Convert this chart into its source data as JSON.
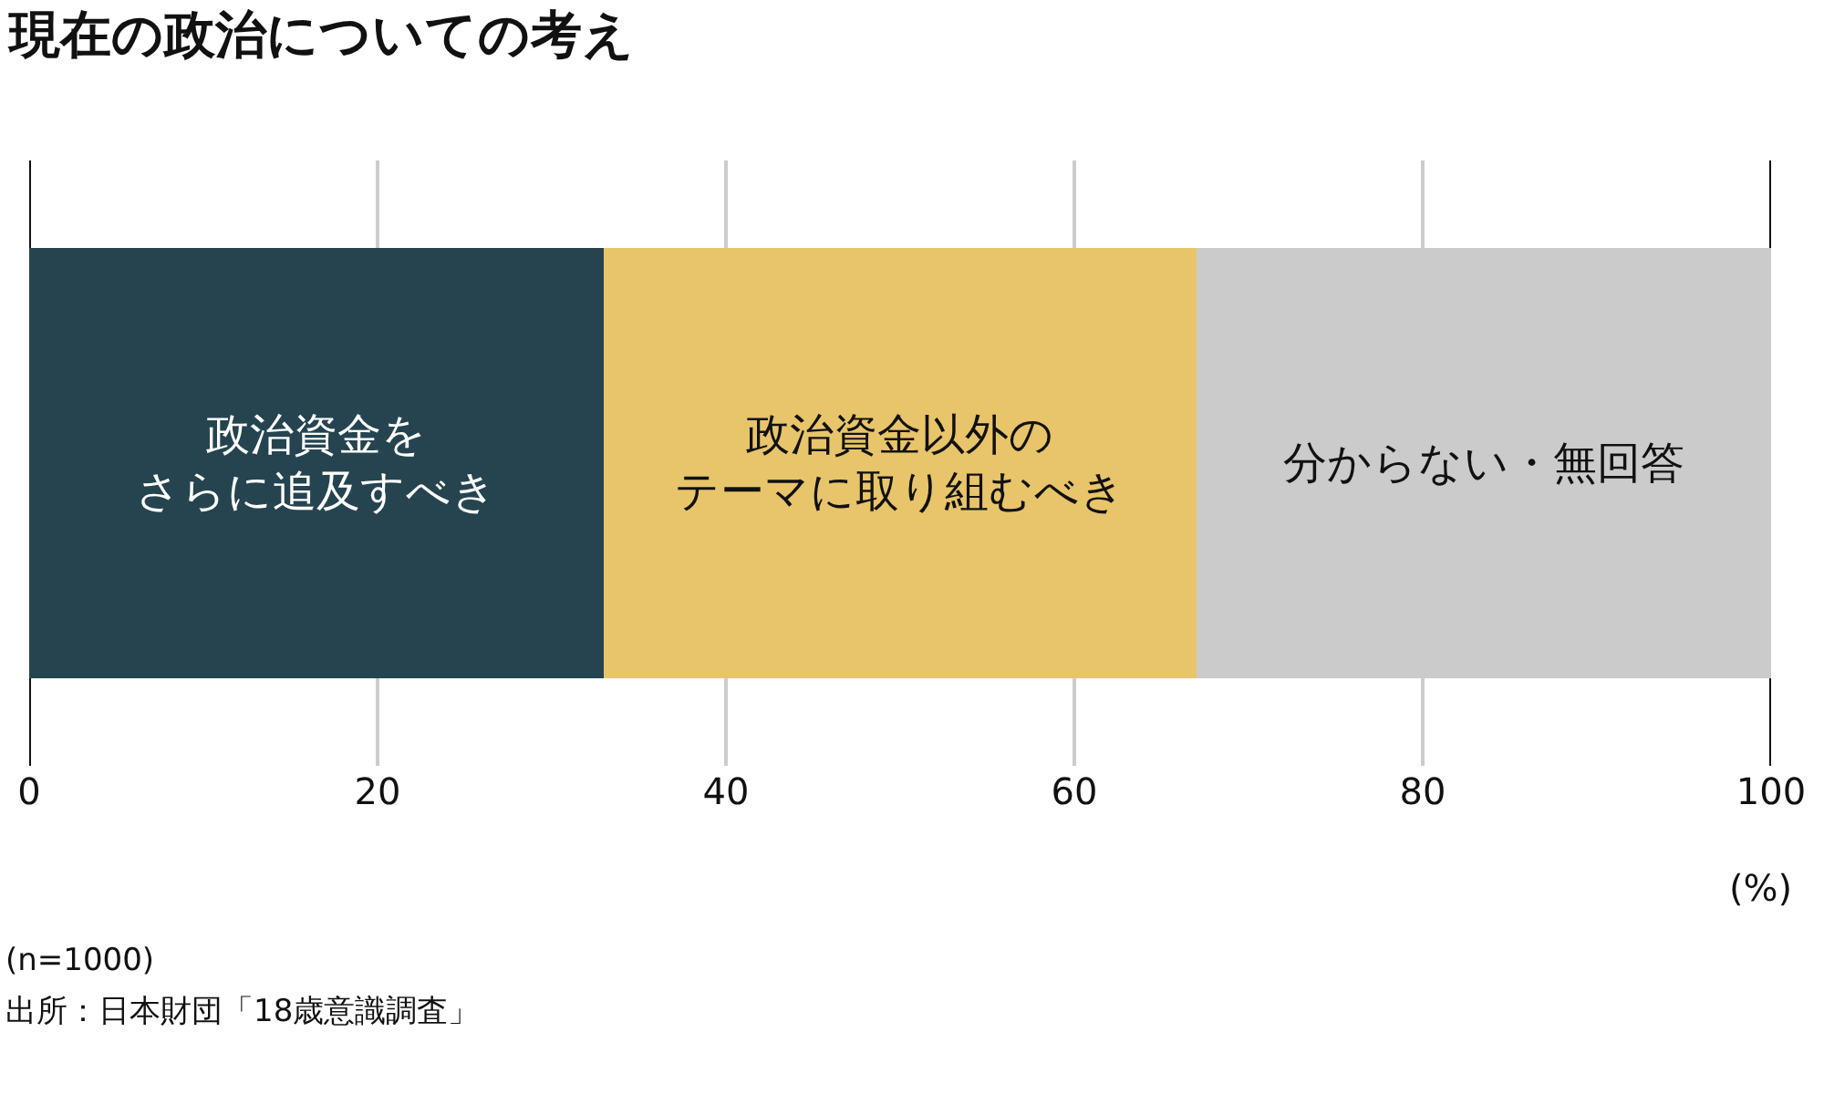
{
  "chart_data": {
    "type": "bar",
    "orientation": "horizontal",
    "stacked": true,
    "title": "現在の政治についての考え",
    "categories": [
      null
    ],
    "series": [
      {
        "name": "政治資金をさらに追及すべき",
        "color": "#25444f",
        "values": [
          33
        ]
      },
      {
        "name": "政治資金以外のテーマに取り組むべき",
        "color": "#e8c46b",
        "values": [
          34
        ]
      },
      {
        "name": "分からない・無回答",
        "color": "#cbcbcb",
        "values": [
          33
        ]
      }
    ],
    "xlim": [
      0,
      100
    ],
    "xticks": [
      0,
      20,
      40,
      60,
      80,
      100
    ],
    "xlabel": "(%)",
    "grid": "x",
    "legend": false,
    "annotations": [
      "(n=1000)",
      "出所：日本財団「18歳意識調査」"
    ]
  }
}
